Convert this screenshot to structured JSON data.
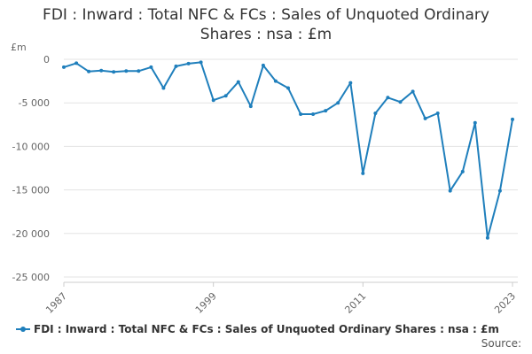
{
  "title_line1": "FDI : Inward : Total NFC & FCs : Sales of Unquoted Ordinary",
  "title_line2": "Shares : nsa : £m",
  "legend_label": "FDI : Inward : Total NFC & FCs : Sales of Unquoted Ordinary Shares : nsa : £m",
  "source_label": "Source:",
  "series_color": "#1f7fbc",
  "chart_data": {
    "type": "line",
    "title": "FDI : Inward : Total NFC & FCs : Sales of Unquoted Ordinary Shares : nsa : £m",
    "ylabel": "£m",
    "ylim": [
      -25000,
      0
    ],
    "xlim": [
      1987,
      2023
    ],
    "y_ticks": [
      0,
      -5000,
      -10000,
      -15000,
      -20000,
      -25000
    ],
    "y_tick_labels": [
      "0",
      "-5 000",
      "-10 000",
      "-15 000",
      "-20 000",
      "-25 000"
    ],
    "x_ticks": [
      1987,
      1999,
      2011,
      2023
    ],
    "x_tick_labels": [
      "1987",
      "1999",
      "2011",
      "2023"
    ],
    "grid": true,
    "legend": "bottom",
    "series": [
      {
        "name": "FDI : Inward : Total NFC & FCs : Sales of Unquoted Ordinary Shares : nsa : £m",
        "x": [
          1987,
          1988,
          1989,
          1990,
          1991,
          1992,
          1993,
          1994,
          1995,
          1996,
          1997,
          1998,
          1999,
          2000,
          2001,
          2002,
          2003,
          2004,
          2005,
          2006,
          2007,
          2008,
          2009,
          2010,
          2011,
          2012,
          2013,
          2014,
          2015,
          2016,
          2017,
          2018,
          2019,
          2020,
          2021,
          2022,
          2023
        ],
        "values": [
          -900,
          -450,
          -1400,
          -1300,
          -1450,
          -1350,
          -1350,
          -900,
          -3300,
          -800,
          -500,
          -350,
          -4700,
          -4200,
          -2600,
          -5400,
          -700,
          -2500,
          -3300,
          -6300,
          -6300,
          -5900,
          -5000,
          -2700,
          -13100,
          -6200,
          -4400,
          -4900,
          -3700,
          -6800,
          -6200,
          -15100,
          -12900,
          -7300,
          -20500,
          -15100,
          -6900
        ]
      }
    ]
  }
}
